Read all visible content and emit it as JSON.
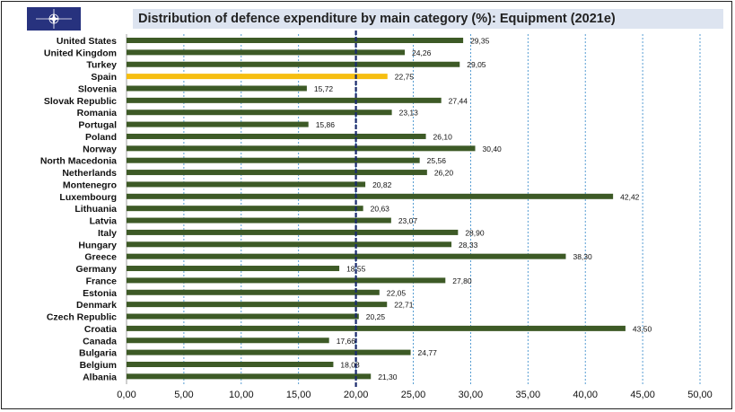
{
  "header": {
    "title": "Distribution of defence expenditure by main category (%): Equipment (2021e)",
    "logo": "NATO"
  },
  "chart_data": {
    "type": "bar",
    "orientation": "horizontal",
    "title": "Distribution of defence expenditure by main category (%): Equipment (2021e)",
    "categories": [
      "United States",
      "United Kingdom",
      "Turkey",
      "Spain",
      "Slovenia",
      "Slovak Republic",
      "Romania",
      "Portugal",
      "Poland",
      "Norway",
      "North Macedonia",
      "Netherlands",
      "Montenegro",
      "Luxembourg",
      "Lithuania",
      "Latvia",
      "Italy",
      "Hungary",
      "Greece",
      "Germany",
      "France",
      "Estonia",
      "Denmark",
      "Czech Republic",
      "Croatia",
      "Canada",
      "Bulgaria",
      "Belgium",
      "Albania"
    ],
    "values": [
      29.35,
      24.26,
      29.05,
      22.75,
      15.72,
      27.44,
      23.13,
      15.86,
      26.1,
      30.4,
      25.56,
      26.2,
      20.82,
      42.42,
      20.63,
      23.07,
      28.9,
      28.33,
      38.3,
      18.55,
      27.8,
      22.05,
      22.71,
      20.25,
      43.5,
      17.66,
      24.77,
      18.03,
      21.3
    ],
    "value_labels": [
      "29,35",
      "24,26",
      "29,05",
      "22,75",
      "15,72",
      "27,44",
      "23,13",
      "15,86",
      "26,10",
      "30,40",
      "25,56",
      "26,20",
      "20,82",
      "42,42",
      "20,63",
      "23,07",
      "28,90",
      "28,33",
      "38,30",
      "18,55",
      "27,80",
      "22,05",
      "22,71",
      "20,25",
      "43,50",
      "17,66",
      "24,77",
      "18,03",
      "21,30"
    ],
    "highlight": "Spain",
    "xlim": [
      0,
      50
    ],
    "xticks": [
      "0,00",
      "5,00",
      "10,00",
      "15,00",
      "20,00",
      "25,00",
      "30,00",
      "35,00",
      "40,00",
      "45,00",
      "50,00"
    ],
    "reference_line": 20,
    "grid": true,
    "colors": {
      "bar": "#3d5a26",
      "highlight": "#f6be10",
      "grid": "#2e86c8",
      "reference": "#1a2a6c"
    }
  }
}
